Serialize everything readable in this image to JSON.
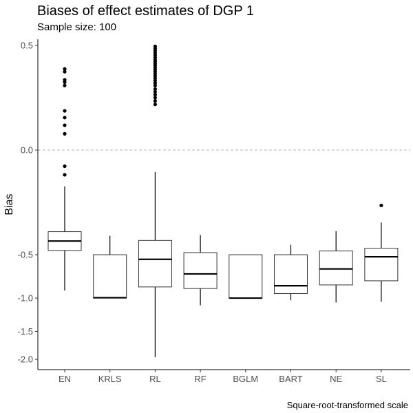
{
  "chart_data": {
    "type": "box",
    "title": "Biases of effect estimates of DGP 1",
    "subtitle": "Sample size: 100",
    "ylabel": "Bias",
    "xlabel": "",
    "caption": "Square-root-transformed scale",
    "scale": "signed square root",
    "yticks": [
      0.5,
      0.0,
      -0.5,
      -1.0,
      -1.5,
      -2.0
    ],
    "ytick_labels": [
      "0.5",
      "0.0",
      "-0.5",
      "-1.0",
      "-1.5",
      "-2.0"
    ],
    "ylim": [
      -2.2,
      0.56
    ],
    "reference_line": 0.0,
    "grid": false,
    "categories": [
      "EN",
      "KRLS",
      "RL",
      "RF",
      "BGLM",
      "BART",
      "NE",
      "SL"
    ],
    "boxes": [
      {
        "category": "EN",
        "whisker_low": -0.9,
        "q1": -0.46,
        "median": -0.378,
        "q3": -0.304,
        "whisker_high": -0.06,
        "outliers": [
          0.3,
          0.28,
          0.225,
          0.21,
          0.19,
          0.07,
          0.048,
          0.028,
          0.012,
          -0.012,
          -0.028
        ]
      },
      {
        "category": "KRLS",
        "whisker_low": -1.0,
        "q1": -1.0,
        "median": -0.995,
        "q3": -0.5,
        "whisker_high": -0.335,
        "outliers": []
      },
      {
        "category": "RL",
        "whisker_low": -1.96,
        "q1": -0.855,
        "median": -0.545,
        "q3": -0.373,
        "whisker_high": -0.022,
        "outliers": [
          0.49,
          0.47,
          0.45,
          0.43,
          0.41,
          0.39,
          0.37,
          0.355,
          0.34,
          0.325,
          0.31,
          0.295,
          0.28,
          0.265,
          0.25,
          0.235,
          0.22,
          0.205,
          0.19,
          0.17,
          0.155,
          0.14,
          0.125,
          0.11,
          0.095
        ]
      },
      {
        "category": "RF",
        "whisker_low": -1.1,
        "q1": -0.875,
        "median": -0.7,
        "q3": -0.48,
        "whisker_high": -0.33,
        "outliers": []
      },
      {
        "category": "BGLM",
        "whisker_low": -1.0,
        "q1": -1.0,
        "median": -1.0,
        "q3": -0.5,
        "whisker_high": -0.5,
        "outliers": []
      },
      {
        "category": "BART",
        "whisker_low": -1.03,
        "q1": -0.94,
        "median": -0.84,
        "q3": -0.5,
        "whisker_high": -0.41,
        "outliers": []
      },
      {
        "category": "NE",
        "whisker_low": -1.06,
        "q1": -0.83,
        "median": -0.645,
        "q3": -0.465,
        "whisker_high": -0.3,
        "outliers": []
      },
      {
        "category": "SL",
        "whisker_low": -1.05,
        "q1": -0.78,
        "median": -0.52,
        "q3": -0.44,
        "whisker_high": -0.24,
        "outliers": [
          -0.14
        ]
      }
    ]
  }
}
